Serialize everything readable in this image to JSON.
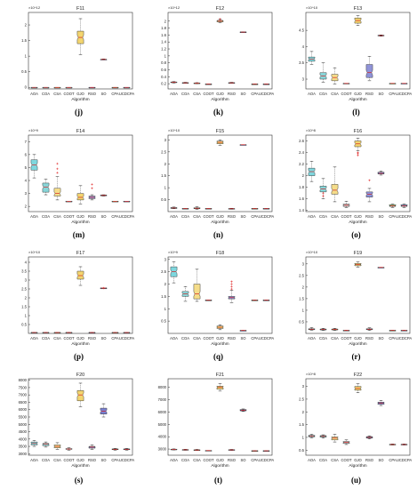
{
  "chart_data": [
    {
      "type": "box",
      "panel": "(j)",
      "title": "F11",
      "xlabel": "Algorithm",
      "exponent": "×10^12",
      "yticks": [
        0,
        0.5,
        1,
        1.5,
        2
      ],
      "ylim": [
        -0.05,
        2.4
      ],
      "categories": [
        "AOA",
        "COA",
        "CSA",
        "COOT",
        "GJO",
        "RSO",
        "SO",
        "CPA",
        "UCDCPA"
      ],
      "boxes": [
        [
          0,
          0,
          0,
          0,
          0
        ],
        [
          0,
          0,
          0,
          0,
          0
        ],
        [
          0,
          0,
          0,
          0,
          0
        ],
        [
          0,
          0,
          0,
          0,
          0
        ],
        [
          1.05,
          1.4,
          1.6,
          1.8,
          2.2
        ],
        [
          0,
          0,
          0,
          0,
          0
        ],
        [
          0.88,
          0.89,
          0.895,
          0.9,
          0.91
        ],
        [
          0,
          0,
          0,
          0,
          0
        ],
        [
          0,
          0,
          0,
          0,
          0
        ]
      ],
      "outliers": [
        [],
        [],
        [],
        [],
        [],
        [],
        [],
        [],
        []
      ]
    },
    {
      "type": "box",
      "panel": "(k)",
      "title": "F12",
      "xlabel": "Algorithm",
      "exponent": "×10^12",
      "yticks": [
        0.2,
        0.4,
        0.6,
        0.8,
        1,
        1.2,
        1.4,
        1.6,
        1.8,
        2
      ],
      "ylim": [
        0.05,
        2.25
      ],
      "categories": [
        "AOA",
        "COA",
        "CSA",
        "COOT",
        "GJO",
        "RSO",
        "SO",
        "CPA",
        "UCDCPA"
      ],
      "boxes": [
        [
          0.22,
          0.23,
          0.24,
          0.25,
          0.26
        ],
        [
          0.21,
          0.22,
          0.225,
          0.23,
          0.24
        ],
        [
          0.2,
          0.21,
          0.215,
          0.22,
          0.23
        ],
        [
          0.19,
          0.19,
          0.19,
          0.19,
          0.19
        ],
        [
          1.96,
          1.98,
          2.0,
          2.02,
          2.05
        ],
        [
          0.21,
          0.22,
          0.225,
          0.23,
          0.24
        ],
        [
          1.68,
          1.68,
          1.685,
          1.69,
          1.69
        ],
        [
          0.19,
          0.19,
          0.19,
          0.19,
          0.19
        ],
        [
          0.19,
          0.19,
          0.19,
          0.19,
          0.19
        ]
      ],
      "outliers": [
        [],
        [],
        [],
        [],
        [
          2.06
        ],
        [],
        [],
        [],
        []
      ]
    },
    {
      "type": "box",
      "panel": "(l)",
      "title": "F13",
      "xlabel": "Algorithm",
      "exponent": "×10^10",
      "yticks": [
        3,
        3.5,
        4,
        4.5
      ],
      "ylim": [
        2.7,
        5.05
      ],
      "categories": [
        "AOA",
        "COA",
        "CSA",
        "COOT",
        "GJO",
        "RSO",
        "SO",
        "CPA",
        "UCDCPA"
      ],
      "boxes": [
        [
          3.45,
          3.55,
          3.62,
          3.68,
          3.85
        ],
        [
          2.9,
          3.0,
          3.1,
          3.2,
          3.5
        ],
        [
          2.85,
          2.95,
          3.05,
          3.15,
          3.35
        ],
        [
          2.87,
          2.87,
          2.87,
          2.87,
          2.87
        ],
        [
          4.65,
          4.72,
          4.8,
          4.88,
          4.95
        ],
        [
          2.95,
          3.05,
          3.2,
          3.45,
          3.7
        ],
        [
          4.32,
          4.33,
          4.34,
          4.35,
          4.36
        ],
        [
          2.87,
          2.87,
          2.87,
          2.87,
          2.87
        ],
        [
          2.87,
          2.87,
          2.87,
          2.87,
          2.87
        ]
      ],
      "outliers": [
        [],
        [],
        [],
        [],
        [],
        [],
        [],
        [],
        []
      ]
    },
    {
      "type": "box",
      "panel": "(m)",
      "title": "F14",
      "xlabel": "Algorithm",
      "exponent": "×10^9",
      "yticks": [
        2,
        3,
        4,
        5,
        6,
        7
      ],
      "ylim": [
        1.6,
        7.5
      ],
      "categories": [
        "AOA",
        "COA",
        "CSA",
        "COOT",
        "GJO",
        "RSO",
        "SO",
        "CPA",
        "UCDCPA"
      ],
      "boxes": [
        [
          4.2,
          4.8,
          5.2,
          5.6,
          6.0
        ],
        [
          2.9,
          3.1,
          3.5,
          3.8,
          4.1
        ],
        [
          2.5,
          2.8,
          3.0,
          3.4,
          4.3
        ],
        [
          2.4,
          2.4,
          2.4,
          2.4,
          2.4
        ],
        [
          2.2,
          2.5,
          2.7,
          3.0,
          3.6
        ],
        [
          2.5,
          2.6,
          2.7,
          2.8,
          2.9
        ],
        [
          2.8,
          2.82,
          2.85,
          2.88,
          2.9
        ],
        [
          2.4,
          2.4,
          2.4,
          2.4,
          2.4
        ],
        [
          2.4,
          2.4,
          2.4,
          2.4,
          2.4
        ]
      ],
      "outliers": [
        [],
        [],
        [
          4.6,
          4.9,
          5.3
        ],
        [],
        [],
        [
          3.4,
          3.7
        ],
        [],
        [],
        []
      ]
    },
    {
      "type": "box",
      "panel": "(n)",
      "title": "F15",
      "xlabel": "Algorithm",
      "exponent": "×10^10",
      "yticks": [
        0.5,
        1,
        1.5,
        2,
        2.5,
        3
      ],
      "ylim": [
        0,
        3.2
      ],
      "categories": [
        "AOA",
        "COA",
        "CSA",
        "COOT",
        "GJO",
        "RSO",
        "SO",
        "CPA",
        "UCDCPA"
      ],
      "boxes": [
        [
          0.12,
          0.13,
          0.15,
          0.17,
          0.19
        ],
        [
          0.13,
          0.13,
          0.13,
          0.13,
          0.13
        ],
        [
          0.1,
          0.12,
          0.14,
          0.16,
          0.2
        ],
        [
          0.13,
          0.13,
          0.13,
          0.13,
          0.13
        ],
        [
          2.78,
          2.84,
          2.9,
          2.95,
          3.0
        ],
        [
          0.1,
          0.11,
          0.12,
          0.13,
          0.14
        ],
        [
          2.8,
          2.8,
          2.8,
          2.8,
          2.8
        ],
        [
          0.13,
          0.13,
          0.13,
          0.13,
          0.13
        ],
        [
          0.13,
          0.13,
          0.13,
          0.13,
          0.13
        ]
      ],
      "outliers": [
        [],
        [],
        [],
        [],
        [],
        [],
        [],
        [],
        []
      ]
    },
    {
      "type": "box",
      "panel": "(o)",
      "title": "F16",
      "xlabel": "Algorithm",
      "exponent": "×10^8",
      "yticks": [
        1.4,
        1.6,
        1.8,
        2,
        2.2,
        2.4,
        2.6
      ],
      "ylim": [
        1.38,
        2.7
      ],
      "categories": [
        "AOA",
        "COA",
        "CSA",
        "COOT",
        "GJO",
        "RSO",
        "SO",
        "CPA",
        "UCDCPA"
      ],
      "boxes": [
        [
          1.9,
          2.0,
          2.07,
          2.13,
          2.25
        ],
        [
          1.6,
          1.72,
          1.77,
          1.82,
          1.95
        ],
        [
          1.55,
          1.68,
          1.75,
          1.85,
          2.15
        ],
        [
          1.45,
          1.47,
          1.49,
          1.51,
          1.56
        ],
        [
          2.43,
          2.5,
          2.55,
          2.6,
          2.65
        ],
        [
          1.55,
          1.63,
          1.68,
          1.72,
          1.78
        ],
        [
          2.01,
          2.03,
          2.04,
          2.06,
          2.08
        ],
        [
          1.45,
          1.47,
          1.48,
          1.5,
          1.51
        ],
        [
          1.45,
          1.47,
          1.48,
          1.5,
          1.51
        ]
      ],
      "outliers": [
        [],
        [
          1.65,
          1.7
        ],
        [],
        [],
        [
          2.38,
          2.4,
          2.35
        ],
        [
          1.92
        ],
        [],
        [],
        []
      ]
    },
    {
      "type": "box",
      "panel": "(p)",
      "title": "F17",
      "xlabel": "Algorithm",
      "exponent": "×10^10",
      "yticks": [
        0.5,
        1,
        1.5,
        2,
        2.5,
        3,
        3.5,
        4
      ],
      "ylim": [
        0,
        4.3
      ],
      "categories": [
        "AOA",
        "COA",
        "CSA",
        "COOT",
        "GJO",
        "RSO",
        "SO",
        "CPA",
        "UCDCPA"
      ],
      "boxes": [
        [
          0.05,
          0.05,
          0.05,
          0.05,
          0.05
        ],
        [
          0.05,
          0.05,
          0.05,
          0.05,
          0.05
        ],
        [
          0.05,
          0.05,
          0.05,
          0.05,
          0.05
        ],
        [
          0.05,
          0.05,
          0.05,
          0.05,
          0.05
        ],
        [
          2.7,
          3.05,
          3.25,
          3.5,
          3.75
        ],
        [
          0.05,
          0.05,
          0.05,
          0.05,
          0.05
        ],
        [
          2.55,
          2.55,
          2.55,
          2.55,
          2.55
        ],
        [
          0.05,
          0.05,
          0.05,
          0.05,
          0.05
        ],
        [
          0.05,
          0.05,
          0.05,
          0.05,
          0.05
        ]
      ],
      "outliers": [
        [],
        [],
        [],
        [],
        [],
        [],
        [
          2.55
        ],
        [],
        []
      ]
    },
    {
      "type": "box",
      "panel": "(q)",
      "title": "F18",
      "xlabel": "Algorithm",
      "exponent": "×10^9",
      "yticks": [
        0.5,
        1,
        1.5,
        2,
        2.5,
        3
      ],
      "ylim": [
        0,
        3.1
      ],
      "categories": [
        "AOA",
        "COA",
        "CSA",
        "COOT",
        "GJO",
        "RSO",
        "SO",
        "CPA",
        "UCDCPA"
      ],
      "boxes": [
        [
          2.05,
          2.3,
          2.5,
          2.7,
          2.9
        ],
        [
          1.3,
          1.5,
          1.6,
          1.7,
          1.9
        ],
        [
          1.3,
          1.4,
          1.6,
          2.0,
          2.6
        ],
        [
          1.35,
          1.35,
          1.35,
          1.35,
          1.35
        ],
        [
          0.15,
          0.2,
          0.25,
          0.3,
          0.35
        ],
        [
          1.25,
          1.4,
          1.45,
          1.5,
          1.75
        ],
        [
          0.12,
          0.12,
          0.12,
          0.12,
          0.12
        ],
        [
          1.35,
          1.35,
          1.35,
          1.35,
          1.35
        ],
        [
          1.35,
          1.35,
          1.35,
          1.35,
          1.35
        ]
      ],
      "outliers": [
        [],
        [],
        [],
        [],
        [],
        [
          1.8,
          1.9,
          2.0,
          2.1
        ],
        [],
        [],
        []
      ]
    },
    {
      "type": "box",
      "panel": "(r)",
      "title": "F19",
      "xlabel": "Algorithm",
      "exponent": "×10^10",
      "yticks": [
        0.5,
        1,
        1.5,
        2,
        2.5,
        3
      ],
      "ylim": [
        0,
        3.3
      ],
      "categories": [
        "AOA",
        "COA",
        "CSA",
        "COOT",
        "GJO",
        "RSO",
        "SO",
        "CPA",
        "UCDCPA"
      ],
      "boxes": [
        [
          0.14,
          0.16,
          0.18,
          0.2,
          0.25
        ],
        [
          0.13,
          0.15,
          0.17,
          0.19,
          0.22
        ],
        [
          0.13,
          0.15,
          0.17,
          0.19,
          0.22
        ],
        [
          0.13,
          0.13,
          0.13,
          0.13,
          0.13
        ],
        [
          2.85,
          2.92,
          2.97,
          3.02,
          3.08
        ],
        [
          0.13,
          0.16,
          0.18,
          0.2,
          0.24
        ],
        [
          2.85,
          2.85,
          2.85,
          2.85,
          2.85
        ],
        [
          0.13,
          0.13,
          0.13,
          0.13,
          0.13
        ],
        [
          0.13,
          0.13,
          0.13,
          0.13,
          0.13
        ]
      ],
      "outliers": [
        [],
        [],
        [],
        [],
        [],
        [],
        [],
        [],
        []
      ]
    },
    {
      "type": "box",
      "panel": "(s)",
      "title": "F20",
      "xlabel": "Algorithm",
      "exponent": "",
      "yticks": [
        3000,
        3500,
        4000,
        4500,
        5000,
        5500,
        6000,
        6500,
        7000,
        7500,
        8000
      ],
      "ylim": [
        2900,
        8100
      ],
      "categories": [
        "AOA",
        "COA",
        "CSA",
        "COOT",
        "GJO",
        "RSO",
        "SO",
        "CPA",
        "UCDCPA"
      ],
      "boxes": [
        [
          3500,
          3600,
          3700,
          3800,
          3900
        ],
        [
          3450,
          3550,
          3650,
          3700,
          3800
        ],
        [
          3300,
          3400,
          3500,
          3600,
          3750
        ],
        [
          3250,
          3300,
          3320,
          3350,
          3400
        ],
        [
          6200,
          6600,
          7000,
          7300,
          7800
        ],
        [
          3300,
          3380,
          3450,
          3500,
          3600
        ],
        [
          5500,
          5700,
          5900,
          6100,
          6400
        ],
        [
          3250,
          3280,
          3300,
          3330,
          3360
        ],
        [
          3250,
          3280,
          3300,
          3330,
          3360
        ]
      ],
      "outliers": [
        [],
        [],
        [],
        [],
        [],
        [],
        [],
        [],
        []
      ]
    },
    {
      "type": "box",
      "panel": "(t)",
      "title": "F21",
      "xlabel": "Algorithm",
      "exponent": "",
      "yticks": [
        3000,
        4000,
        5000,
        6000,
        7000,
        8000
      ],
      "ylim": [
        2500,
        8700
      ],
      "categories": [
        "AOA",
        "COA",
        "CSA",
        "COOT",
        "GJO",
        "RSO",
        "SO",
        "CPA",
        "UCDCPA"
      ],
      "boxes": [
        [
          2930,
          2950,
          2970,
          2990,
          3010
        ],
        [
          2900,
          2920,
          2940,
          2960,
          2980
        ],
        [
          2880,
          2900,
          2920,
          2940,
          2970
        ],
        [
          2880,
          2880,
          2880,
          2880,
          2880
        ],
        [
          7700,
          7850,
          8000,
          8100,
          8300
        ],
        [
          2890,
          2910,
          2930,
          2950,
          2970
        ],
        [
          6050,
          6100,
          6150,
          6200,
          6250
        ],
        [
          2860,
          2860,
          2860,
          2860,
          2860
        ],
        [
          2860,
          2860,
          2860,
          2860,
          2860
        ]
      ],
      "outliers": [
        [],
        [],
        [],
        [],
        [],
        [],
        [],
        [],
        []
      ]
    },
    {
      "type": "box",
      "panel": "(u)",
      "title": "F22",
      "xlabel": "Algorithm",
      "exponent": "×10^8",
      "yticks": [
        0.5,
        1,
        1.5,
        2,
        2.5,
        3
      ],
      "ylim": [
        0.3,
        3.3
      ],
      "categories": [
        "AOA",
        "COA",
        "CSA",
        "COOT",
        "GJO",
        "RSO",
        "SO",
        "CPA",
        "UCDCPA"
      ],
      "boxes": [
        [
          0.98,
          1.02,
          1.05,
          1.08,
          1.12
        ],
        [
          0.97,
          1.01,
          1.04,
          1.07,
          1.1
        ],
        [
          0.82,
          0.9,
          0.97,
          1.02,
          1.12
        ],
        [
          0.72,
          0.76,
          0.8,
          0.84,
          0.9
        ],
        [
          2.75,
          2.85,
          2.92,
          3.0,
          3.1
        ],
        [
          0.94,
          0.97,
          1.0,
          1.03,
          1.06
        ],
        [
          2.25,
          2.3,
          2.35,
          2.38,
          2.45
        ],
        [
          0.7,
          0.71,
          0.72,
          0.73,
          0.74
        ],
        [
          0.7,
          0.71,
          0.72,
          0.73,
          0.74
        ]
      ],
      "outliers": [
        [],
        [],
        [],
        [],
        [],
        [],
        [],
        [],
        []
      ]
    }
  ],
  "colors": {
    "AOA": "#7fd7de",
    "COA": "#88d5d8",
    "CSA": "#f5dd8a",
    "COOT": "#cfcfcf",
    "GJO": "#f3d56f",
    "RSO": "#8f93d8",
    "SO": "#7a7fd0",
    "CPA": "#a8d88e",
    "UCDCPA": "#90a8d8",
    "median": "#d62020",
    "outlier": "#e02020",
    "whisker": "#333333"
  }
}
